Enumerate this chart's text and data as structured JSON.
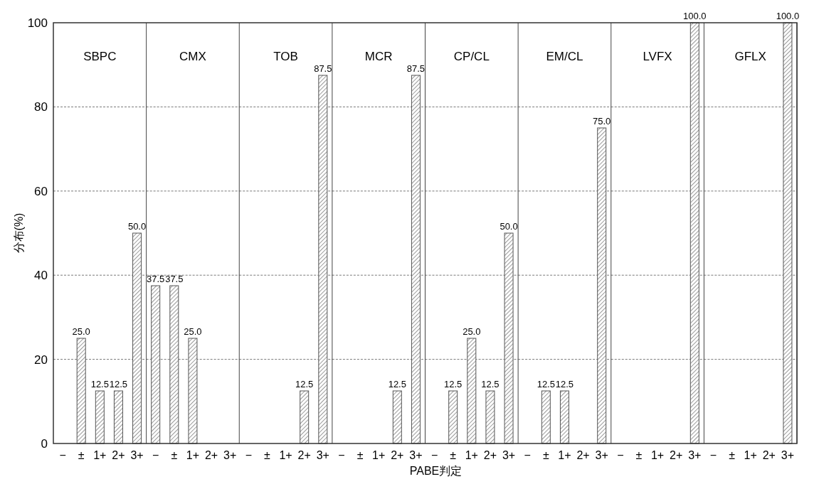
{
  "chart_data": [
    {
      "type": "bar",
      "title": "SBPC",
      "ylabel": "分布(%)",
      "categories": [
        "−",
        "±",
        "1+",
        "2+",
        "3+"
      ],
      "values": [
        0,
        25.0,
        12.5,
        12.5,
        50.0
      ],
      "value_labels": [
        null,
        "25.0",
        "12.5",
        "12.5",
        "50.0"
      ],
      "color": "#555555",
      "ylim": [
        0,
        100
      ],
      "yticks": [
        0,
        20,
        40,
        60,
        80,
        100
      ],
      "grid": "y"
    },
    {
      "type": "bar",
      "title": "CMX",
      "categories": [
        "−",
        "±",
        "1+",
        "2+",
        "3+"
      ],
      "values": [
        37.5,
        37.5,
        25.0,
        0,
        0
      ],
      "value_labels": [
        "37.5",
        "37.5",
        "25.0",
        null,
        null
      ],
      "color": "#555555",
      "ylim": [
        0,
        100
      ],
      "grid": "y",
      "tick_labels": "x"
    },
    {
      "type": "bar",
      "title": "TOB",
      "categories": [
        "−",
        "±",
        "1+",
        "2+",
        "3+"
      ],
      "values": [
        0,
        0,
        0,
        12.5,
        87.5
      ],
      "value_labels": [
        null,
        null,
        null,
        "12.5",
        "87.5"
      ],
      "color": "#555555",
      "ylim": [
        0,
        100
      ],
      "grid": "y",
      "tick_labels": "x"
    },
    {
      "type": "bar",
      "title": "MCR",
      "categories": [
        "−",
        "±",
        "1+",
        "2+",
        "3+"
      ],
      "values": [
        0,
        0,
        0,
        12.5,
        87.5
      ],
      "value_labels": [
        null,
        null,
        null,
        "12.5",
        "87.5"
      ],
      "color": "#555555",
      "ylim": [
        0,
        100
      ],
      "grid": "y",
      "tick_labels": "x"
    },
    {
      "type": "bar",
      "title": "CP/CL",
      "xlabel": "PABE判定",
      "categories": [
        "−",
        "±",
        "1+",
        "2+",
        "3+"
      ],
      "values": [
        0,
        12.5,
        25.0,
        12.5,
        50.0
      ],
      "value_labels": [
        null,
        "12.5",
        "25.0",
        "12.5",
        "50.0"
      ],
      "color": "#555555",
      "ylim": [
        0,
        100
      ],
      "grid": "y",
      "tick_labels": "x"
    },
    {
      "type": "bar",
      "title": "EM/CL",
      "categories": [
        "−",
        "±",
        "1+",
        "2+",
        "3+"
      ],
      "values": [
        0,
        12.5,
        12.5,
        0,
        75.0
      ],
      "value_labels": [
        null,
        "12.5",
        "12.5",
        null,
        "75.0"
      ],
      "color": "#555555",
      "ylim": [
        0,
        100
      ],
      "grid": "y",
      "tick_labels": "x"
    },
    {
      "type": "bar",
      "title": "LVFX",
      "categories": [
        "−",
        "±",
        "1+",
        "2+",
        "3+"
      ],
      "values": [
        0,
        0,
        0,
        0,
        100.0
      ],
      "value_labels": [
        null,
        null,
        null,
        null,
        "100.0"
      ],
      "color": "#555555",
      "ylim": [
        0,
        100
      ],
      "grid": "y",
      "tick_labels": "x"
    },
    {
      "type": "bar",
      "title": "GFLX",
      "categories": [
        "−",
        "±",
        "1+",
        "2+",
        "3+"
      ],
      "values": [
        0,
        0,
        0,
        0,
        100.0
      ],
      "value_labels": [
        null,
        null,
        null,
        null,
        "100.0"
      ],
      "color": "#555555",
      "ylim": [
        0,
        100
      ],
      "grid": "y",
      "tick_labels": "x"
    }
  ]
}
